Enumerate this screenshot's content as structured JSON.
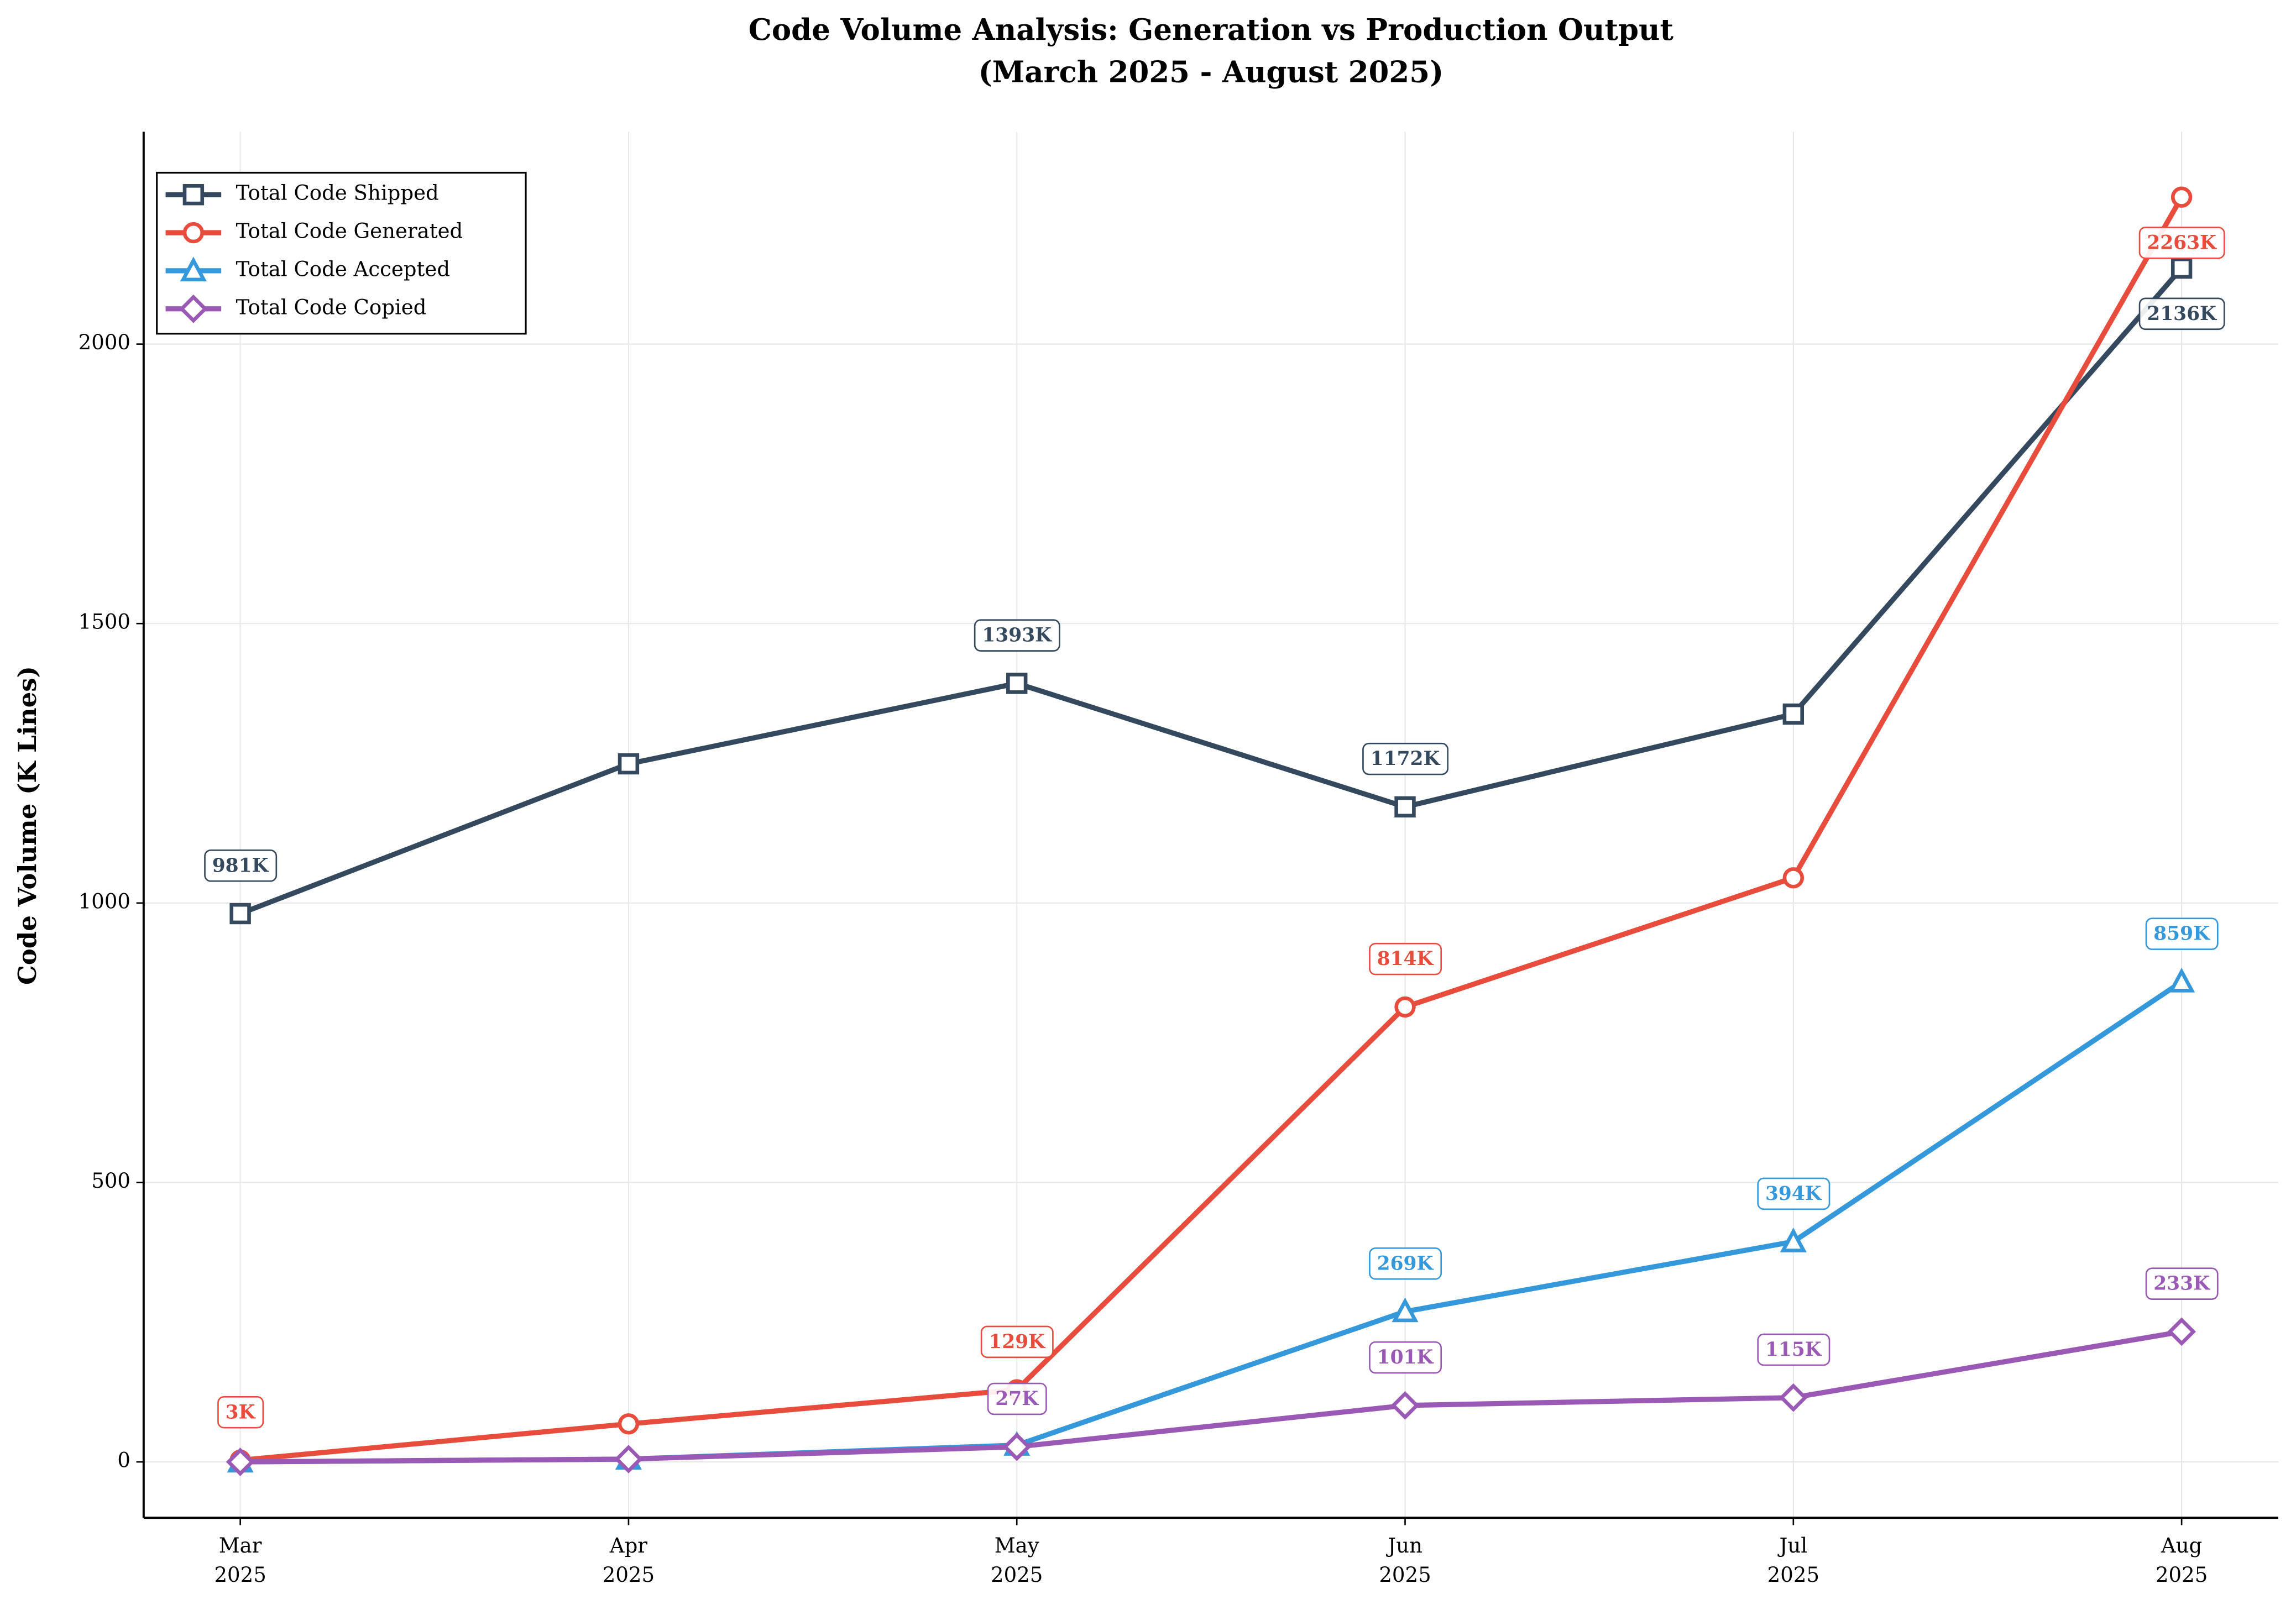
{
  "chart_data": {
    "type": "line",
    "title": "Code Volume Analysis: Generation vs Production Output",
    "subtitle": "(March 2025 - August 2025)",
    "y_label": "Code Volume (K Lines)",
    "categories": [
      "Mar\n2025",
      "Apr\n2025",
      "May\n2025",
      "Jun\n2025",
      "Jul\n2025",
      "Aug\n2025"
    ],
    "series": [
      {
        "name": "Total Code Shipped",
        "color": "#34495e",
        "marker": "square",
        "values": [
          981,
          1249,
          1393,
          1172,
          1338,
          2136
        ],
        "value_labels": [
          "981K",
          null,
          "1393K",
          "1172K",
          null,
          "2136K"
        ]
      },
      {
        "name": "Total Code Generated",
        "color": "#e74c3c",
        "marker": "circle",
        "values": [
          3,
          68,
          129,
          814,
          1045,
          2263
        ],
        "value_labels": [
          "3K",
          null,
          "129K",
          "814K",
          null,
          "2263K"
        ]
      },
      {
        "name": "Total Code Accepted",
        "color": "#3498db",
        "marker": "triangle",
        "values": [
          0,
          5,
          30,
          269,
          394,
          859
        ],
        "value_labels": [
          null,
          null,
          null,
          "269K",
          "394K",
          "859K"
        ]
      },
      {
        "name": "Total Code Copied",
        "color": "#9b59b6",
        "marker": "diamond",
        "values": [
          0,
          5,
          27,
          101,
          115,
          233
        ],
        "value_labels": [
          null,
          null,
          "27K",
          "101K",
          "115K",
          "233K"
        ]
      }
    ],
    "ylim": [
      -100,
      2380
    ],
    "yticks": [
      0,
      500,
      1000,
      1500,
      2000
    ],
    "grid": true,
    "legend": "upper left"
  }
}
